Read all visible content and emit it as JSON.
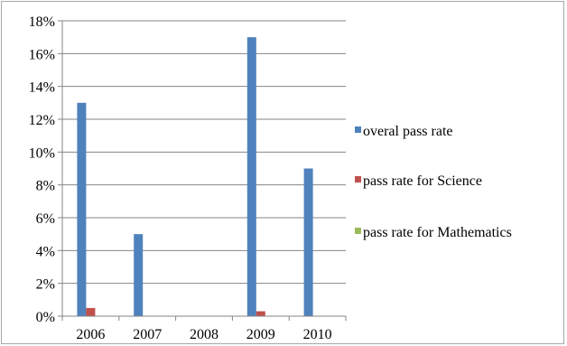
{
  "chart_data": {
    "type": "bar",
    "title": "",
    "xlabel": "",
    "ylabel": "",
    "categories": [
      "2006",
      "2007",
      "2008",
      "2009",
      "2010"
    ],
    "y_ticks": [
      "0%",
      "2%",
      "4%",
      "6%",
      "8%",
      "10%",
      "12%",
      "14%",
      "16%",
      "18%"
    ],
    "ylim": [
      0,
      18
    ],
    "y_unit": "%",
    "grid": true,
    "legend_position": "right",
    "series": [
      {
        "name": "overal pass rate",
        "color": "#4f81bd",
        "values": [
          13,
          5,
          0,
          17,
          9
        ]
      },
      {
        "name": "pass rate for Science",
        "color": "#c0504d",
        "values": [
          0.5,
          0,
          0,
          0.3,
          0
        ]
      },
      {
        "name": "pass rate for Mathematics",
        "color": "#9bbb59",
        "values": [
          0,
          0,
          0,
          0,
          0
        ]
      }
    ]
  }
}
